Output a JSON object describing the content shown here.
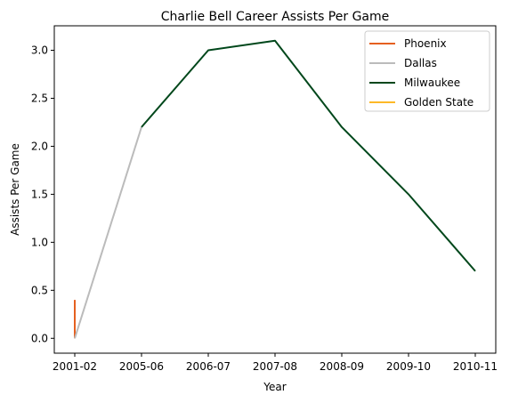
{
  "chart_data": {
    "type": "line",
    "title": "Charlie Bell  Career Assists Per Game",
    "xlabel": "Year",
    "ylabel": "Assists Per Game",
    "categories": [
      "2001-02",
      "2005-06",
      "2006-07",
      "2007-08",
      "2008-09",
      "2009-10",
      "2010-11"
    ],
    "ylim": [
      -0.155,
      3.255
    ],
    "yticks": [
      0.0,
      0.5,
      1.0,
      1.5,
      2.0,
      2.5,
      3.0
    ],
    "ytick_labels": [
      "0.0",
      "0.5",
      "1.0",
      "1.5",
      "2.0",
      "2.5",
      "3.0"
    ],
    "grid": false,
    "legend_position": "top-right",
    "series": [
      {
        "name": "Phoenix",
        "color": "#E56020",
        "points": [
          {
            "x": "2001-02",
            "y": 0.4
          },
          {
            "x": "2001-02",
            "y": 0.0
          }
        ]
      },
      {
        "name": "Dallas",
        "color": "#BBBBBB",
        "points": [
          {
            "x": "2001-02",
            "y": 0.0
          },
          {
            "x": "2005-06",
            "y": 2.2
          }
        ]
      },
      {
        "name": "Milwaukee",
        "color": "#00471B",
        "points": [
          {
            "x": "2005-06",
            "y": 2.2
          },
          {
            "x": "2006-07",
            "y": 3.0
          },
          {
            "x": "2007-08",
            "y": 3.1
          },
          {
            "x": "2008-09",
            "y": 2.2
          },
          {
            "x": "2009-10",
            "y": 1.5
          },
          {
            "x": "2010-11",
            "y": 0.7
          }
        ]
      },
      {
        "name": "Golden State",
        "color": "#FDB927",
        "points": []
      }
    ]
  }
}
